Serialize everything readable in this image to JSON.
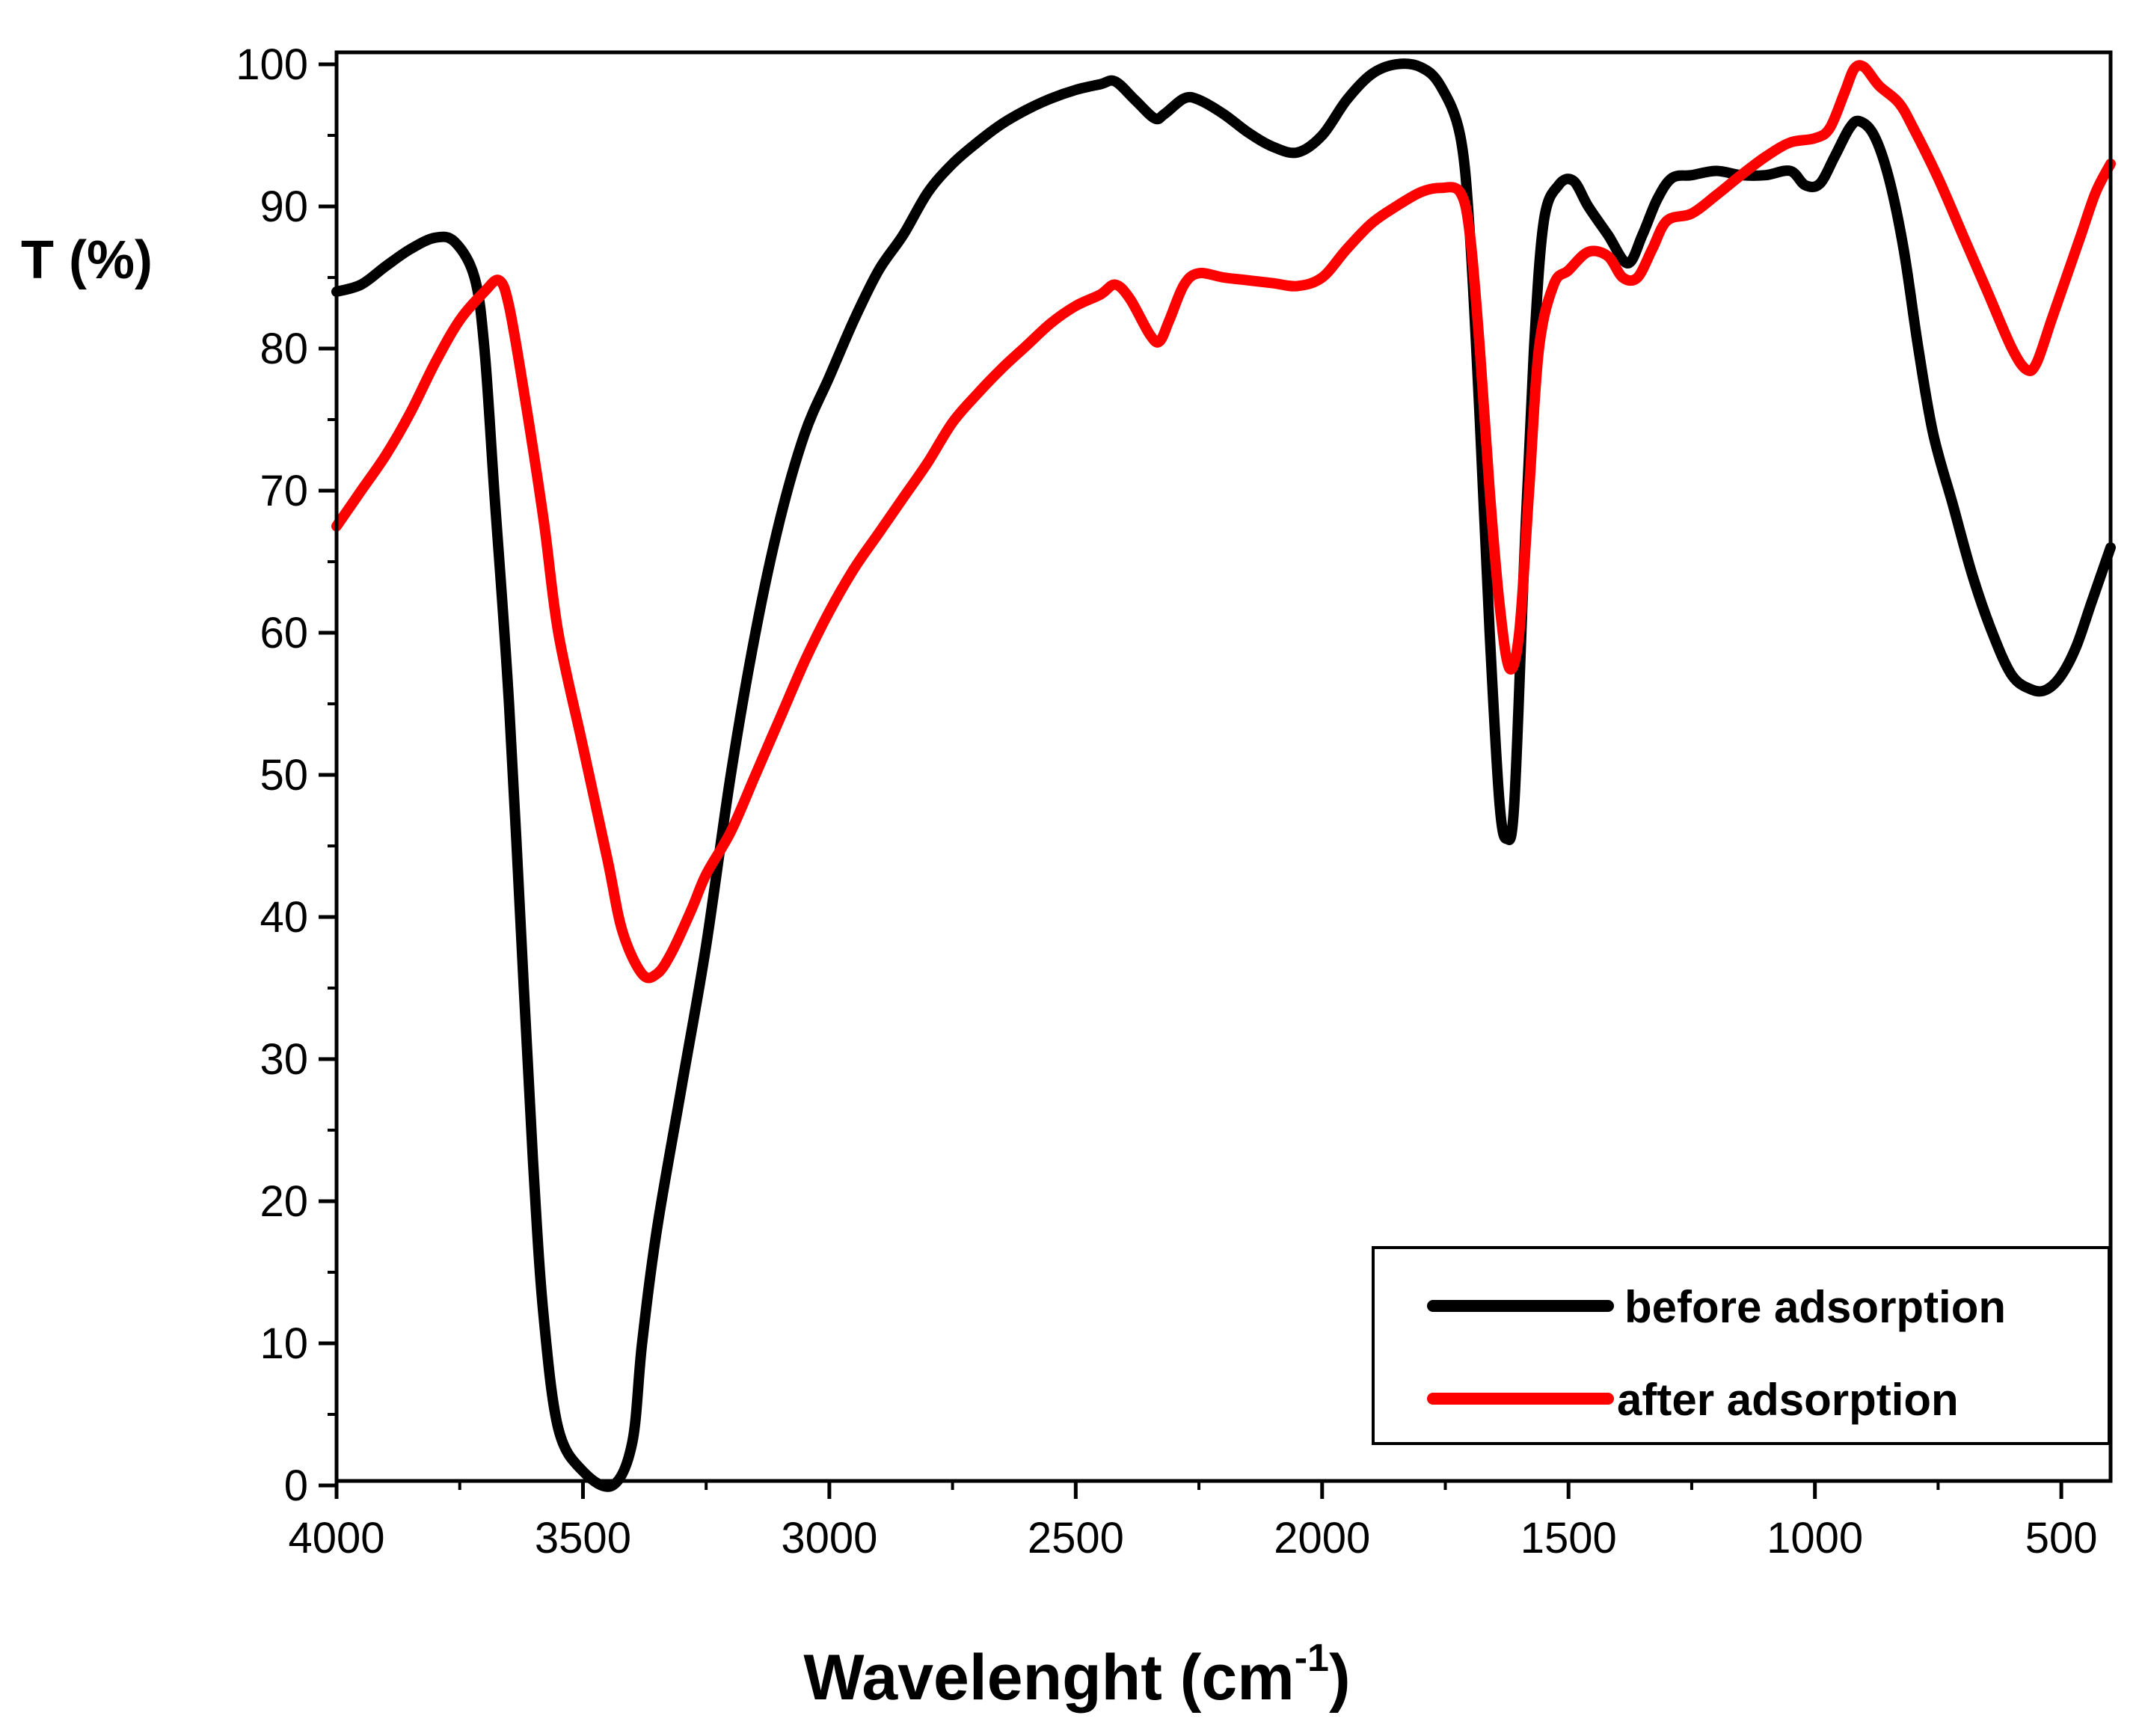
{
  "chart_data": {
    "type": "line",
    "title": "",
    "xlabel": "Wavelenght (cm",
    "xlabel_sup": "-1",
    "xlabel_close": ")",
    "ylabel": "T (%)",
    "xlim": [
      4000,
      400
    ],
    "ylim": [
      0,
      100
    ],
    "x_ticks": [
      4000,
      3500,
      3000,
      2500,
      2000,
      1500,
      1000,
      500
    ],
    "y_ticks": [
      0,
      10,
      20,
      30,
      40,
      50,
      60,
      70,
      80,
      90,
      100
    ],
    "legend_position": "bottom-right",
    "series": [
      {
        "name": "before adsorption",
        "color": "#000000",
        "points": [
          [
            4000,
            84
          ],
          [
            3950,
            84.5
          ],
          [
            3900,
            85.8
          ],
          [
            3850,
            87
          ],
          [
            3800,
            87.8
          ],
          [
            3760,
            87.5
          ],
          [
            3720,
            85
          ],
          [
            3700,
            80
          ],
          [
            3680,
            70
          ],
          [
            3650,
            55
          ],
          [
            3620,
            35
          ],
          [
            3600,
            22
          ],
          [
            3580,
            12
          ],
          [
            3550,
            4
          ],
          [
            3500,
            1
          ],
          [
            3440,
            0
          ],
          [
            3400,
            3
          ],
          [
            3380,
            10
          ],
          [
            3350,
            18
          ],
          [
            3300,
            28
          ],
          [
            3250,
            38
          ],
          [
            3200,
            50
          ],
          [
            3150,
            60
          ],
          [
            3100,
            68
          ],
          [
            3050,
            74
          ],
          [
            3000,
            78
          ],
          [
            2950,
            82
          ],
          [
            2900,
            85.5
          ],
          [
            2850,
            88
          ],
          [
            2800,
            91
          ],
          [
            2750,
            93
          ],
          [
            2700,
            94.5
          ],
          [
            2650,
            95.8
          ],
          [
            2600,
            96.8
          ],
          [
            2550,
            97.6
          ],
          [
            2500,
            98.2
          ],
          [
            2450,
            98.6
          ],
          [
            2420,
            98.8
          ],
          [
            2380,
            97.5
          ],
          [
            2340,
            96.2
          ],
          [
            2320,
            96.5
          ],
          [
            2280,
            97.6
          ],
          [
            2250,
            97.5
          ],
          [
            2200,
            96.5
          ],
          [
            2150,
            95.2
          ],
          [
            2100,
            94.2
          ],
          [
            2050,
            93.8
          ],
          [
            2000,
            95
          ],
          [
            1950,
            97.5
          ],
          [
            1900,
            99.3
          ],
          [
            1850,
            100
          ],
          [
            1800,
            99.8
          ],
          [
            1760,
            98.5
          ],
          [
            1720,
            95
          ],
          [
            1700,
            88
          ],
          [
            1680,
            75
          ],
          [
            1660,
            60
          ],
          [
            1640,
            48
          ],
          [
            1625,
            45.5
          ],
          [
            1610,
            48
          ],
          [
            1590,
            65
          ],
          [
            1570,
            80
          ],
          [
            1550,
            89
          ],
          [
            1520,
            91.5
          ],
          [
            1490,
            91.8
          ],
          [
            1460,
            90
          ],
          [
            1420,
            88
          ],
          [
            1380,
            86
          ],
          [
            1350,
            88
          ],
          [
            1320,
            90.5
          ],
          [
            1290,
            92
          ],
          [
            1250,
            92.2
          ],
          [
            1200,
            92.5
          ],
          [
            1150,
            92.2
          ],
          [
            1100,
            92.2
          ],
          [
            1050,
            92.5
          ],
          [
            1020,
            91.5
          ],
          [
            990,
            91.6
          ],
          [
            960,
            93.5
          ],
          [
            930,
            95.5
          ],
          [
            910,
            96
          ],
          [
            880,
            95
          ],
          [
            850,
            92
          ],
          [
            820,
            87
          ],
          [
            790,
            80
          ],
          [
            760,
            74
          ],
          [
            720,
            69
          ],
          [
            680,
            64
          ],
          [
            640,
            60
          ],
          [
            600,
            57
          ],
          [
            560,
            56
          ],
          [
            530,
            56
          ],
          [
            500,
            57
          ],
          [
            470,
            59
          ],
          [
            440,
            62
          ],
          [
            400,
            66
          ]
        ]
      },
      {
        "name": "after adsorption",
        "color": "#ff0000",
        "points": [
          [
            4000,
            67.5
          ],
          [
            3950,
            70
          ],
          [
            3900,
            72.5
          ],
          [
            3850,
            75.5
          ],
          [
            3800,
            79
          ],
          [
            3750,
            82
          ],
          [
            3700,
            84
          ],
          [
            3670,
            84.8
          ],
          [
            3650,
            83
          ],
          [
            3620,
            77
          ],
          [
            3580,
            68
          ],
          [
            3550,
            60
          ],
          [
            3500,
            52
          ],
          [
            3450,
            44
          ],
          [
            3420,
            39
          ],
          [
            3380,
            36
          ],
          [
            3350,
            36
          ],
          [
            3320,
            37.5
          ],
          [
            3280,
            40.5
          ],
          [
            3250,
            43
          ],
          [
            3200,
            46
          ],
          [
            3150,
            50
          ],
          [
            3100,
            54
          ],
          [
            3050,
            58
          ],
          [
            3000,
            61.5
          ],
          [
            2950,
            64.5
          ],
          [
            2900,
            67
          ],
          [
            2850,
            69.5
          ],
          [
            2800,
            72
          ],
          [
            2750,
            74.8
          ],
          [
            2700,
            76.8
          ],
          [
            2650,
            78.6
          ],
          [
            2600,
            80.2
          ],
          [
            2550,
            81.8
          ],
          [
            2500,
            83
          ],
          [
            2450,
            83.8
          ],
          [
            2420,
            84.5
          ],
          [
            2390,
            83.5
          ],
          [
            2350,
            81
          ],
          [
            2330,
            80.5
          ],
          [
            2310,
            82
          ],
          [
            2280,
            84.5
          ],
          [
            2250,
            85.3
          ],
          [
            2200,
            85
          ],
          [
            2150,
            84.8
          ],
          [
            2100,
            84.6
          ],
          [
            2050,
            84.4
          ],
          [
            2000,
            85
          ],
          [
            1950,
            87
          ],
          [
            1900,
            88.8
          ],
          [
            1850,
            90
          ],
          [
            1800,
            91
          ],
          [
            1760,
            91.3
          ],
          [
            1720,
            91
          ],
          [
            1700,
            88
          ],
          [
            1680,
            80
          ],
          [
            1660,
            70
          ],
          [
            1640,
            62
          ],
          [
            1620,
            57.5
          ],
          [
            1600,
            60
          ],
          [
            1580,
            70
          ],
          [
            1560,
            80
          ],
          [
            1530,
            84.5
          ],
          [
            1500,
            85.5
          ],
          [
            1460,
            86.8
          ],
          [
            1420,
            86.5
          ],
          [
            1390,
            85
          ],
          [
            1360,
            85
          ],
          [
            1330,
            87
          ],
          [
            1300,
            89
          ],
          [
            1250,
            89.5
          ],
          [
            1200,
            90.8
          ],
          [
            1150,
            92.2
          ],
          [
            1100,
            93.5
          ],
          [
            1050,
            94.5
          ],
          [
            1000,
            94.8
          ],
          [
            970,
            95.5
          ],
          [
            940,
            98
          ],
          [
            920,
            99.7
          ],
          [
            900,
            99.8
          ],
          [
            870,
            98.5
          ],
          [
            830,
            97.3
          ],
          [
            800,
            95.5
          ],
          [
            750,
            92
          ],
          [
            700,
            88
          ],
          [
            650,
            84
          ],
          [
            600,
            80
          ],
          [
            570,
            78.5
          ],
          [
            550,
            79
          ],
          [
            520,
            82
          ],
          [
            490,
            85
          ],
          [
            460,
            88
          ],
          [
            430,
            91
          ],
          [
            400,
            93
          ]
        ]
      }
    ]
  }
}
